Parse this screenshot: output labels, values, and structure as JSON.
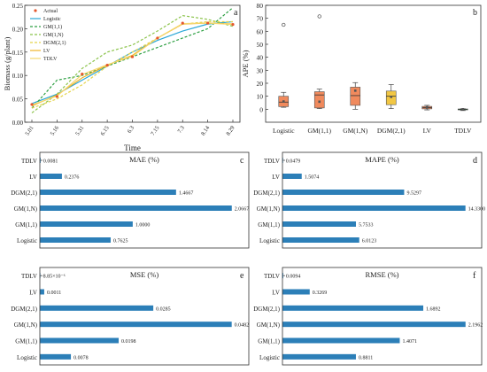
{
  "chart_data": [
    {
      "panel_label": "a",
      "type": "line",
      "xlabel": "Time",
      "ylabel": "Biomass (g/plant)",
      "categories": [
        "5.01",
        "5.16",
        "5.31",
        "6.15",
        "6.3",
        "7.15",
        "7.3",
        "8.14",
        "8.29"
      ],
      "ylim": [
        0.0,
        0.25
      ],
      "yticks": [
        0.0,
        0.05,
        0.1,
        0.15,
        0.2,
        0.25
      ],
      "legend_position": "top-left",
      "series": [
        {
          "name": "Actual",
          "style": "points",
          "color": "#e4572e",
          "values": [
            0.038,
            0.055,
            0.103,
            0.122,
            0.14,
            0.18,
            0.212,
            0.212,
            0.209
          ]
        },
        {
          "name": "Logistic",
          "style": "solid",
          "color": "#2aa7d6",
          "values": [
            0.04,
            0.06,
            0.09,
            0.12,
            0.15,
            0.175,
            0.195,
            0.21,
            0.215
          ]
        },
        {
          "name": "GM(1,1)",
          "style": "dashed",
          "color": "#2ea043",
          "values": [
            0.03,
            0.09,
            0.1,
            0.12,
            0.14,
            0.16,
            0.18,
            0.2,
            0.245
          ]
        },
        {
          "name": "GM(1,N)",
          "style": "dashed",
          "color": "#8bc34a",
          "values": [
            0.02,
            0.06,
            0.115,
            0.15,
            0.165,
            0.195,
            0.228,
            0.22,
            0.205
          ]
        },
        {
          "name": "DGM(2,1)",
          "style": "dashed",
          "color": "#e5d44a",
          "values": [
            0.03,
            0.05,
            0.08,
            0.12,
            0.15,
            0.18,
            0.21,
            0.215,
            0.215
          ]
        },
        {
          "name": "LV",
          "style": "solid",
          "color": "#f0b429",
          "values": [
            0.035,
            0.058,
            0.095,
            0.122,
            0.143,
            0.18,
            0.21,
            0.212,
            0.21
          ]
        },
        {
          "name": "TDLV",
          "style": "solid",
          "color": "#f5d76e",
          "values": [
            0.037,
            0.056,
            0.102,
            0.123,
            0.141,
            0.18,
            0.211,
            0.212,
            0.209
          ]
        }
      ]
    },
    {
      "panel_label": "b",
      "type": "box",
      "ylabel": "APE (%)",
      "ylim": [
        -10,
        80
      ],
      "yticks": [
        0,
        10,
        20,
        30,
        40,
        50,
        60,
        70,
        80
      ],
      "categories": [
        "Logistic",
        "GM(1,1)",
        "GM(1,N)",
        "DGM(2,1)",
        "LV",
        "TDLV"
      ],
      "boxes": [
        {
          "min": 1.5,
          "q1": 2.0,
          "median": 5.5,
          "q3": 10.0,
          "max": 13.0,
          "mean": 6.0,
          "outliers": [
            65.0
          ],
          "color": "#f08a5d"
        },
        {
          "min": 0.5,
          "q1": 1.0,
          "median": 11.0,
          "q3": 13.5,
          "max": 15.5,
          "mean": 5.8,
          "outliers": [
            71.5
          ],
          "color": "#f08a5d"
        },
        {
          "min": 0.0,
          "q1": 3.0,
          "median": 10.5,
          "q3": 17.0,
          "max": 20.5,
          "mean": 14.3,
          "outliers": [],
          "color": "#f08a5d"
        },
        {
          "min": 0.5,
          "q1": 3.5,
          "median": 10.0,
          "q3": 14.0,
          "max": 19.0,
          "mean": 9.5,
          "outliers": [],
          "color": "#f2c744"
        },
        {
          "min": -0.5,
          "q1": 0.3,
          "median": 1.2,
          "q3": 2.2,
          "max": 3.0,
          "mean": 1.5,
          "outliers": [],
          "color": "#f08a5d"
        },
        {
          "min": -1.0,
          "q1": -0.5,
          "median": 0.0,
          "q3": 0.2,
          "max": 0.4,
          "mean": 0.0,
          "outliers": [],
          "color": "#2ea043"
        }
      ]
    },
    {
      "panel_label": "c",
      "type": "bar",
      "orientation": "horizontal",
      "title": "MAE (%)",
      "categories": [
        "TDLV",
        "LV",
        "DGM(2,1)",
        "GM(1,N)",
        "GM(1,1)",
        "Logistic"
      ],
      "values": [
        0.0081,
        0.2376,
        1.4667,
        2.0667,
        1.0,
        0.7625
      ],
      "value_labels": [
        "0.0081",
        "0.2376",
        "1.4667",
        "2.0667",
        "1.0000",
        "0.7625"
      ],
      "xlim": [
        0,
        2.25
      ],
      "color": "#2c7fb8"
    },
    {
      "panel_label": "d",
      "type": "bar",
      "orientation": "horizontal",
      "title": "MAPE (%)",
      "categories": [
        "TDLV",
        "LV",
        "DGM(2,1)",
        "GM(1,N)",
        "GM(1,1)",
        "Logistic"
      ],
      "values": [
        0.0479,
        1.5074,
        9.5297,
        14.33,
        5.7533,
        6.0123
      ],
      "value_labels": [
        "0.0479",
        "1.5074",
        "9.5297",
        "14.3300",
        "5.7533",
        "6.0123"
      ],
      "xlim": [
        0,
        15.6
      ],
      "color": "#2c7fb8"
    },
    {
      "panel_label": "e",
      "type": "bar",
      "orientation": "horizontal",
      "title": "MSE (%)",
      "categories": [
        "TDLV",
        "LV",
        "DGM(2,1)",
        "GM(1,N)",
        "GM(1,1)",
        "Logistic"
      ],
      "values": [
        8.85e-06,
        0.0011,
        0.0285,
        0.0482,
        0.0198,
        0.0078
      ],
      "value_labels": [
        "8.85×10⁻⁶",
        "0.0011",
        "0.0285",
        "0.0482",
        "0.0198",
        "0.0078"
      ],
      "xlim": [
        0,
        0.0525
      ],
      "color": "#2c7fb8"
    },
    {
      "panel_label": "f",
      "type": "bar",
      "orientation": "horizontal",
      "title": "RMSE (%)",
      "categories": [
        "TDLV",
        "LV",
        "DGM(2,1)",
        "GM(1,N)",
        "GM(1,1)",
        "Logistic"
      ],
      "values": [
        0.0094,
        0.3269,
        1.6892,
        2.1962,
        1.4071,
        0.8811
      ],
      "value_labels": [
        "0.0094",
        "0.3269",
        "1.6892",
        "2.1962",
        "1.4071",
        "0.8811"
      ],
      "xlim": [
        0,
        2.39
      ],
      "color": "#2c7fb8"
    }
  ]
}
